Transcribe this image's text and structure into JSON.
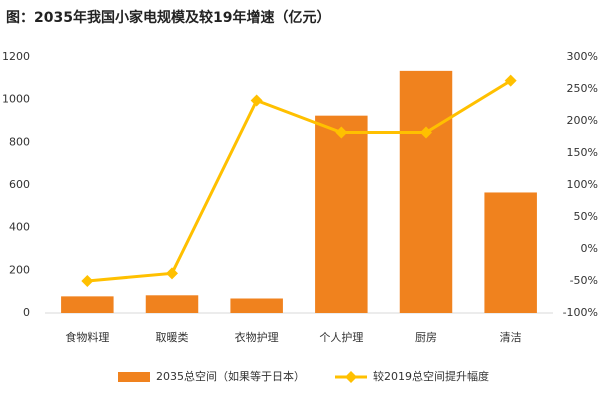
{
  "chart_data": {
    "type": "combo",
    "title": "图：2035年我国小家电规模及较19年增速（亿元）",
    "categories": [
      "食物料理",
      "取暖类",
      "衣物护理",
      "个人护理",
      "厨房",
      "清洁"
    ],
    "series": [
      {
        "name": "2035总空间（如果等于日本）",
        "type": "bar",
        "color": "#f0821e",
        "values": [
          78,
          83,
          68,
          925,
          1135,
          565
        ]
      },
      {
        "name": "较2019总空间提升幅度",
        "type": "line",
        "axis": "y2",
        "color": "#ffc000",
        "values": [
          -50,
          -38,
          232,
          182,
          182,
          263
        ]
      }
    ],
    "ylim": [
      0,
      1200
    ],
    "yticks": [
      0,
      200,
      400,
      600,
      800,
      1000,
      1200
    ],
    "y2lim": [
      -100,
      300
    ],
    "y2ticks": [
      {
        "value": -100,
        "label": "-100%"
      },
      {
        "value": -50,
        "label": "-50%"
      },
      {
        "value": 0,
        "label": "0%"
      },
      {
        "value": 50,
        "label": "50%"
      },
      {
        "value": 100,
        "label": "100%"
      },
      {
        "value": 150,
        "label": "150%"
      },
      {
        "value": 200,
        "label": "200%"
      },
      {
        "value": 250,
        "label": "250%"
      },
      {
        "value": 300,
        "label": "300%"
      }
    ],
    "grid": false,
    "legend": "bottom"
  }
}
